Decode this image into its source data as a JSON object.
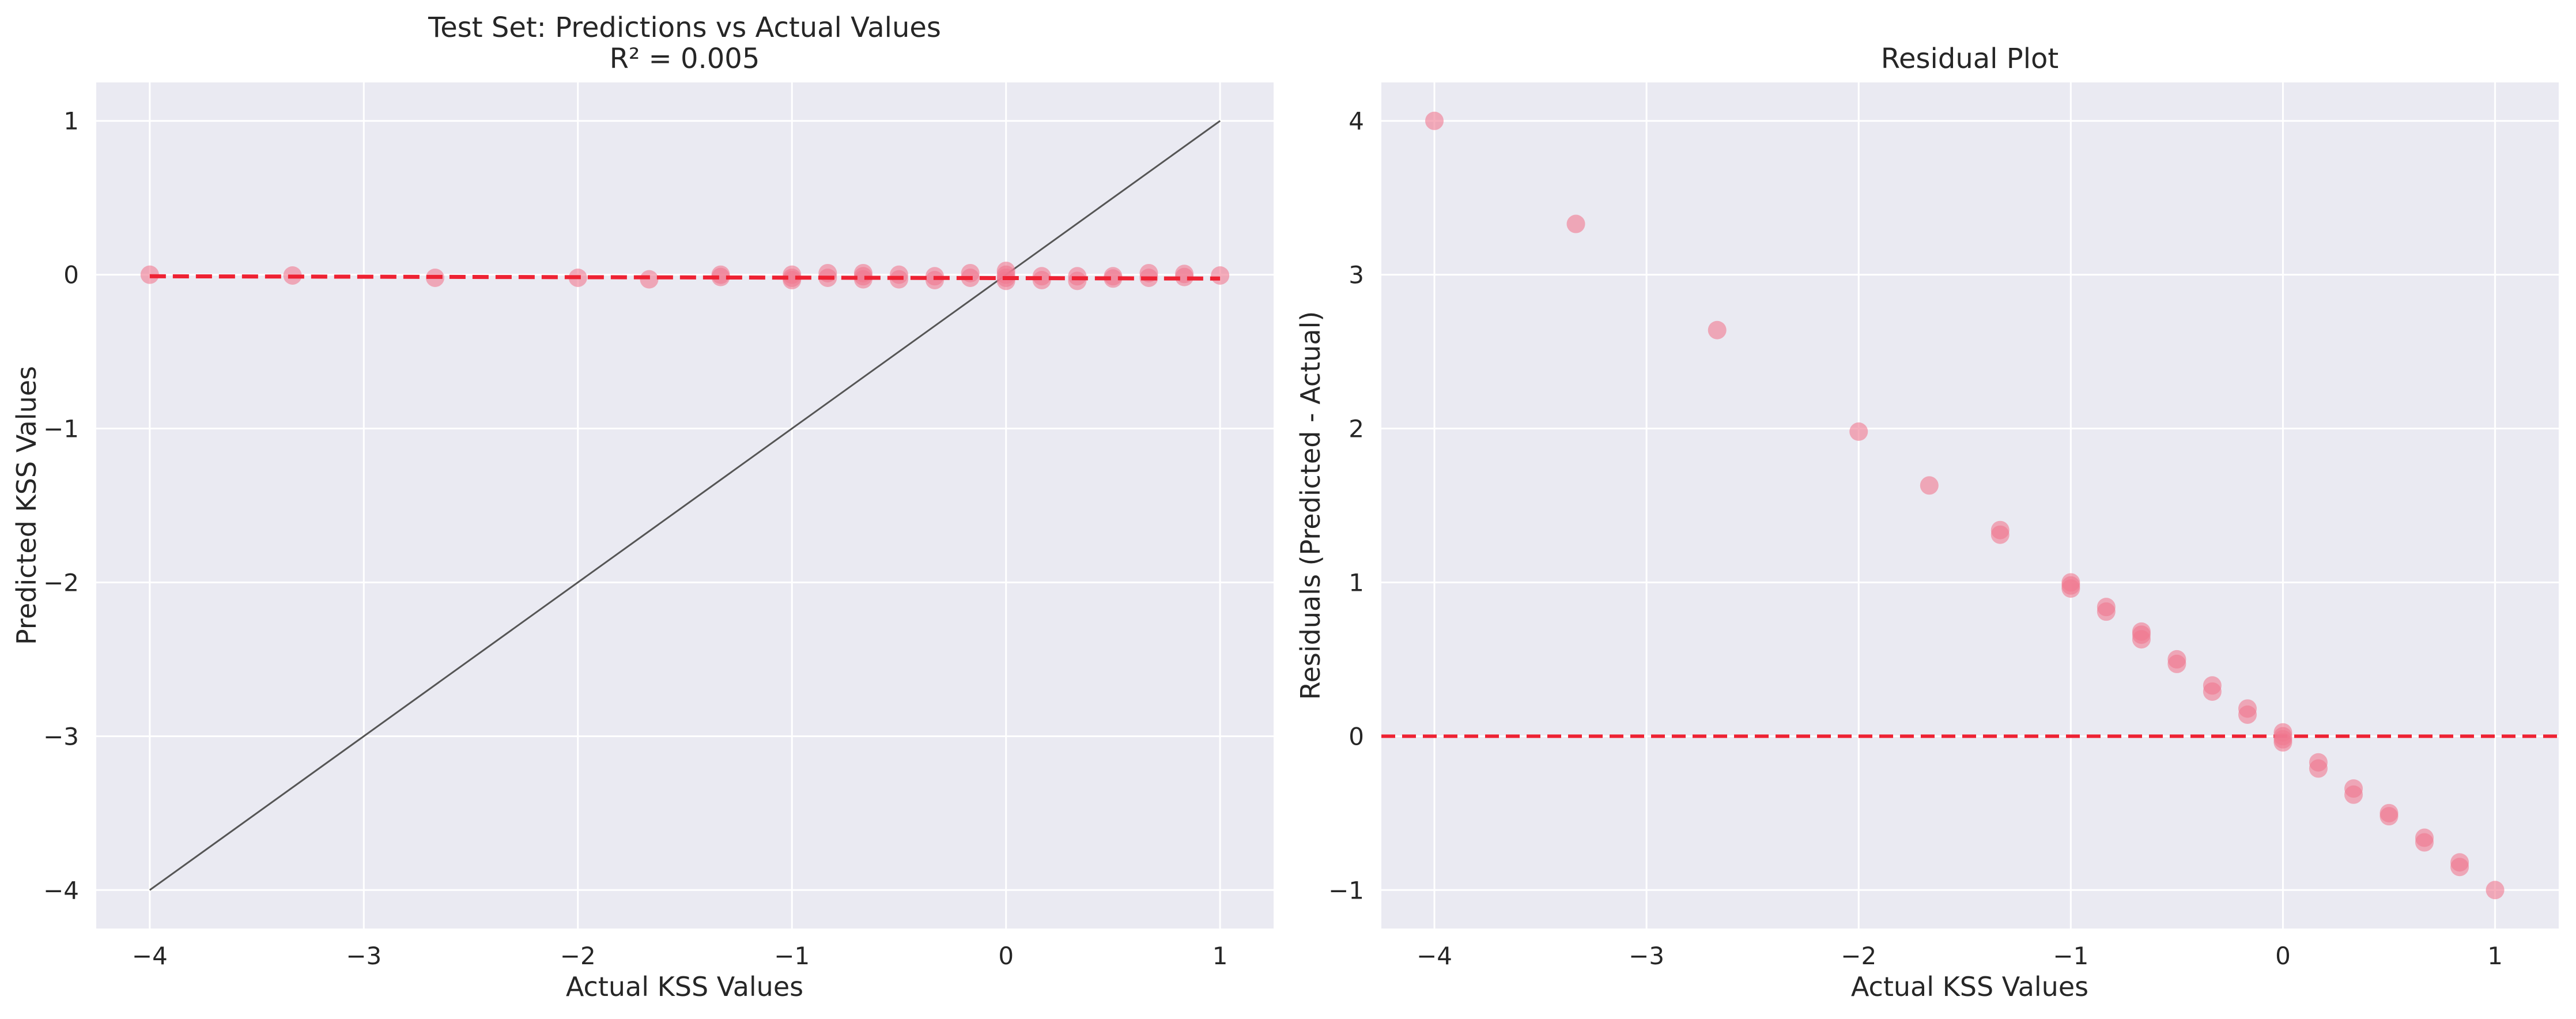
{
  "chart_data": [
    {
      "type": "scatter",
      "title": "Test Set: Predictions vs Actual Values",
      "subtitle": "R² = 0.005",
      "xlabel": "Actual KSS Values",
      "ylabel": "Predicted KSS Values",
      "xlim": [
        -4.25,
        1.25
      ],
      "ylim": [
        -4.25,
        1.25
      ],
      "xticks": [
        -4,
        -3,
        -2,
        -1,
        0,
        1
      ],
      "yticks": [
        -4,
        -3,
        -2,
        -1,
        0,
        1
      ],
      "xtick_labels": [
        "−4",
        "−3",
        "−2",
        "−1",
        "0",
        "1"
      ],
      "ytick_labels": [
        "−4",
        "−3",
        "−2",
        "−1",
        "0",
        "1"
      ],
      "grid": true,
      "point_color": "#f07890",
      "points": [
        {
          "x": -4.0,
          "y": 0.0
        },
        {
          "x": -3.333,
          "y": -0.005
        },
        {
          "x": -2.667,
          "y": -0.02
        },
        {
          "x": -2.0,
          "y": -0.02
        },
        {
          "x": -1.667,
          "y": -0.03
        },
        {
          "x": -1.333,
          "y": 0.0
        },
        {
          "x": -1.333,
          "y": -0.015
        },
        {
          "x": -1.0,
          "y": 0.0
        },
        {
          "x": -1.0,
          "y": -0.02
        },
        {
          "x": -1.0,
          "y": -0.035
        },
        {
          "x": -0.833,
          "y": 0.01
        },
        {
          "x": -0.833,
          "y": -0.02
        },
        {
          "x": -0.667,
          "y": 0.01
        },
        {
          "x": -0.667,
          "y": -0.01
        },
        {
          "x": -0.667,
          "y": -0.03
        },
        {
          "x": -0.5,
          "y": 0.0
        },
        {
          "x": -0.5,
          "y": -0.03
        },
        {
          "x": -0.333,
          "y": -0.01
        },
        {
          "x": -0.333,
          "y": -0.035
        },
        {
          "x": -0.167,
          "y": 0.01
        },
        {
          "x": -0.167,
          "y": -0.02
        },
        {
          "x": 0.0,
          "y": 0.025
        },
        {
          "x": 0.0,
          "y": 0.0
        },
        {
          "x": 0.0,
          "y": -0.02
        },
        {
          "x": 0.0,
          "y": -0.04
        },
        {
          "x": 0.167,
          "y": -0.01
        },
        {
          "x": 0.167,
          "y": -0.035
        },
        {
          "x": 0.333,
          "y": -0.01
        },
        {
          "x": 0.333,
          "y": -0.04
        },
        {
          "x": 0.5,
          "y": -0.01
        },
        {
          "x": 0.5,
          "y": -0.025
        },
        {
          "x": 0.667,
          "y": 0.01
        },
        {
          "x": 0.667,
          "y": -0.02
        },
        {
          "x": 0.833,
          "y": 0.005
        },
        {
          "x": 0.833,
          "y": -0.015
        },
        {
          "x": 1.0,
          "y": -0.005
        }
      ],
      "identity_line": {
        "from": [
          -4,
          -4
        ],
        "to": [
          1,
          1
        ],
        "color": "#555555"
      },
      "fit_line": {
        "from": [
          -4,
          -0.01
        ],
        "to": [
          1,
          -0.025
        ],
        "color": "#ee2233",
        "style": "dashed"
      }
    },
    {
      "type": "scatter",
      "title": "Residual Plot",
      "xlabel": "Actual KSS Values",
      "ylabel": "Residuals (Predicted - Actual)",
      "xlim": [
        -4.25,
        1.3
      ],
      "ylim": [
        -1.25,
        4.25
      ],
      "xticks": [
        -4,
        -3,
        -2,
        -1,
        0,
        1
      ],
      "yticks": [
        -1,
        0,
        1,
        2,
        3,
        4
      ],
      "xtick_labels": [
        "−4",
        "−3",
        "−2",
        "−1",
        "0",
        "1"
      ],
      "ytick_labels": [
        "−1",
        "0",
        "1",
        "2",
        "3",
        "4"
      ],
      "grid": true,
      "point_color": "#f07890",
      "points": [
        {
          "x": -4.0,
          "y": 4.0
        },
        {
          "x": -3.333,
          "y": 3.33
        },
        {
          "x": -2.667,
          "y": 2.64
        },
        {
          "x": -2.0,
          "y": 1.98
        },
        {
          "x": -1.667,
          "y": 1.63
        },
        {
          "x": -1.333,
          "y": 1.34
        },
        {
          "x": -1.333,
          "y": 1.31
        },
        {
          "x": -1.0,
          "y": 1.0
        },
        {
          "x": -1.0,
          "y": 0.98
        },
        {
          "x": -1.0,
          "y": 0.96
        },
        {
          "x": -0.833,
          "y": 0.84
        },
        {
          "x": -0.833,
          "y": 0.81
        },
        {
          "x": -0.667,
          "y": 0.68
        },
        {
          "x": -0.667,
          "y": 0.66
        },
        {
          "x": -0.667,
          "y": 0.63
        },
        {
          "x": -0.5,
          "y": 0.5
        },
        {
          "x": -0.5,
          "y": 0.47
        },
        {
          "x": -0.333,
          "y": 0.33
        },
        {
          "x": -0.333,
          "y": 0.29
        },
        {
          "x": -0.167,
          "y": 0.18
        },
        {
          "x": -0.167,
          "y": 0.14
        },
        {
          "x": 0.0,
          "y": 0.025
        },
        {
          "x": 0.0,
          "y": 0.0
        },
        {
          "x": 0.0,
          "y": -0.02
        },
        {
          "x": 0.0,
          "y": -0.04
        },
        {
          "x": 0.167,
          "y": -0.17
        },
        {
          "x": 0.167,
          "y": -0.21
        },
        {
          "x": 0.333,
          "y": -0.34
        },
        {
          "x": 0.333,
          "y": -0.38
        },
        {
          "x": 0.5,
          "y": -0.5
        },
        {
          "x": 0.5,
          "y": -0.52
        },
        {
          "x": 0.667,
          "y": -0.66
        },
        {
          "x": 0.667,
          "y": -0.69
        },
        {
          "x": 0.833,
          "y": -0.82
        },
        {
          "x": 0.833,
          "y": -0.85
        },
        {
          "x": 1.0,
          "y": -1.0
        }
      ],
      "zero_line": {
        "y": 0,
        "color": "#ee2233",
        "style": "dashed"
      }
    }
  ]
}
